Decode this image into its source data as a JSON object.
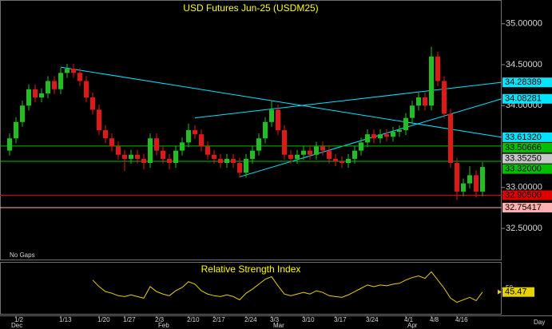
{
  "chart_data": {
    "type": "candlestick",
    "title": "USD  Futures  Jun-25  (USDM25)",
    "note": "No Gaps",
    "x_unit": "Day",
    "categories": [
      null,
      "1/2",
      null,
      null,
      null,
      null,
      null,
      null,
      "1/13",
      null,
      null,
      null,
      null,
      null,
      "1/20",
      null,
      null,
      null,
      "1/27",
      null,
      null,
      null,
      null,
      "2/3",
      null,
      null,
      null,
      null,
      "2/10",
      null,
      null,
      null,
      "2/17",
      null,
      null,
      null,
      null,
      "2/24",
      null,
      null,
      null,
      "3/3",
      null,
      null,
      null,
      null,
      "3/10",
      null,
      null,
      null,
      null,
      "3/17",
      null,
      null,
      null,
      null,
      "3/24",
      null,
      null,
      null,
      null,
      null,
      "4/1",
      null,
      null,
      null,
      "4/8",
      null,
      null,
      null,
      "4/16",
      null,
      null,
      null,
      null
    ],
    "month_labels": [
      {
        "index": 0,
        "label": "Dec"
      },
      {
        "index": 23,
        "label": "Feb"
      },
      {
        "index": 41,
        "label": "Mar"
      },
      {
        "index": 62,
        "label": "Apr"
      }
    ],
    "open": [
      33.45,
      33.6,
      33.8,
      34.0,
      34.2,
      34.1,
      34.15,
      34.3,
      34.2,
      34.4,
      34.45,
      34.4,
      34.3,
      34.1,
      33.95,
      33.7,
      33.6,
      33.5,
      33.4,
      33.35,
      33.4,
      33.35,
      33.3,
      33.6,
      33.45,
      33.35,
      33.3,
      33.45,
      33.55,
      33.7,
      33.65,
      33.5,
      33.4,
      33.35,
      33.3,
      33.35,
      33.3,
      33.18,
      33.35,
      33.45,
      33.6,
      33.8,
      33.95,
      33.7,
      33.4,
      33.35,
      33.4,
      33.45,
      33.4,
      33.5,
      33.45,
      33.35,
      33.32,
      33.3,
      33.35,
      33.45,
      33.55,
      33.65,
      33.6,
      33.65,
      33.62,
      33.68,
      33.7,
      33.85,
      34.0,
      34.1,
      34.0,
      34.6,
      34.3,
      33.9,
      33.3,
      32.95,
      33.05,
      33.15,
      32.95
    ],
    "high": [
      33.66,
      33.86,
      34.06,
      34.26,
      34.26,
      34.21,
      34.36,
      34.36,
      34.46,
      34.51,
      34.51,
      34.46,
      34.36,
      34.16,
      34.01,
      33.76,
      33.66,
      33.56,
      33.46,
      33.46,
      33.46,
      33.41,
      33.66,
      33.66,
      33.51,
      33.41,
      33.51,
      33.61,
      33.78,
      33.76,
      33.71,
      33.56,
      33.46,
      33.41,
      33.41,
      33.41,
      33.36,
      33.41,
      33.51,
      33.66,
      33.86,
      34.06,
      34.01,
      33.76,
      33.46,
      33.46,
      33.51,
      33.51,
      33.56,
      33.56,
      33.51,
      33.41,
      33.38,
      33.41,
      33.51,
      33.61,
      33.71,
      33.71,
      33.71,
      33.71,
      33.74,
      33.76,
      33.91,
      34.06,
      34.16,
      34.16,
      34.72,
      34.66,
      34.36,
      33.96,
      33.36,
      33.11,
      33.26,
      33.21,
      33.31
    ],
    "low": [
      33.39,
      33.54,
      33.74,
      33.94,
      34.04,
      34.04,
      34.09,
      34.14,
      34.14,
      34.34,
      34.34,
      34.24,
      34.04,
      33.89,
      33.64,
      33.54,
      33.44,
      33.34,
      33.2,
      33.29,
      33.29,
      33.22,
      33.24,
      33.39,
      33.29,
      33.22,
      33.24,
      33.39,
      33.49,
      33.59,
      33.44,
      33.34,
      33.29,
      33.24,
      33.24,
      33.24,
      33.12,
      33.12,
      33.29,
      33.39,
      33.54,
      33.74,
      33.64,
      33.34,
      33.29,
      33.29,
      33.34,
      33.34,
      33.34,
      33.39,
      33.29,
      33.26,
      33.24,
      33.24,
      33.29,
      33.39,
      33.49,
      33.54,
      33.54,
      33.56,
      33.56,
      33.62,
      33.64,
      33.79,
      33.94,
      33.94,
      33.94,
      34.24,
      33.84,
      33.24,
      32.85,
      32.89,
      32.99,
      32.88,
      32.89
    ],
    "close": [
      33.6,
      33.8,
      34.0,
      34.2,
      34.1,
      34.15,
      34.3,
      34.2,
      34.4,
      34.45,
      34.4,
      34.3,
      34.1,
      33.95,
      33.7,
      33.6,
      33.5,
      33.4,
      33.35,
      33.4,
      33.35,
      33.3,
      33.6,
      33.45,
      33.35,
      33.3,
      33.45,
      33.55,
      33.7,
      33.65,
      33.5,
      33.4,
      33.35,
      33.3,
      33.35,
      33.3,
      33.18,
      33.35,
      33.45,
      33.6,
      33.8,
      33.95,
      33.7,
      33.4,
      33.35,
      33.4,
      33.45,
      33.4,
      33.5,
      33.45,
      33.35,
      33.32,
      33.3,
      33.35,
      33.45,
      33.55,
      33.65,
      33.6,
      33.65,
      33.62,
      33.68,
      33.7,
      33.85,
      34.0,
      34.1,
      34.0,
      34.6,
      34.3,
      33.9,
      33.3,
      32.95,
      33.05,
      33.15,
      32.95,
      33.25
    ],
    "up_color": "#1fc01f",
    "down_color": "#e01818",
    "ylim": [
      32.12,
      35.29
    ],
    "yticks": [
      {
        "value": 35,
        "label": "35.00000"
      },
      {
        "value": 34.5,
        "label": "34.50000"
      },
      {
        "value": 34,
        "label": "34.00000"
      },
      {
        "value": 33,
        "label": "33.00000"
      },
      {
        "value": 32.5,
        "label": "32.50000"
      }
    ],
    "levels": [
      {
        "value": 34.28389,
        "label": "34.28389",
        "color": "#00e5ff",
        "from": [
          29,
          33.85
        ]
      },
      {
        "value": 34.08281,
        "label": "34.08281",
        "color": "#00e5ff",
        "from": [
          36,
          33.13
        ]
      },
      {
        "value": 33.6132,
        "label": "33.61320",
        "color": "#00e5ff",
        "from": [
          8,
          34.47
        ]
      },
      {
        "value": 33.50666,
        "label": "33.50666",
        "color": "#00c000",
        "line": true
      },
      {
        "value": 33.3525,
        "label": "33.35250",
        "color": "#c8c8c8"
      },
      {
        "value": 33.32,
        "label": "33.32000",
        "color": "#00c000",
        "line": true
      },
      {
        "value": 32.905,
        "label": "32.90500",
        "color": "#e00000",
        "line": true
      },
      {
        "value": 32.75417,
        "label": "32.75417",
        "color": "#ffb0b0",
        "line": true
      }
    ],
    "rsi": {
      "title": "Relative Strength Index",
      "color": "#e6d200",
      "ylim": [
        20,
        80
      ],
      "yticks": [
        50
      ],
      "values": [
        null,
        null,
        null,
        null,
        null,
        null,
        null,
        null,
        null,
        null,
        null,
        null,
        null,
        60,
        52,
        46,
        44,
        41,
        40,
        42,
        40,
        38,
        52,
        46,
        43,
        41,
        47,
        51,
        58,
        55,
        47,
        43,
        41,
        40,
        42,
        40,
        36,
        44,
        49,
        55,
        61,
        64,
        53,
        43,
        41,
        43,
        45,
        43,
        47,
        45,
        41,
        40,
        39,
        42,
        46,
        50,
        54,
        52,
        54,
        53,
        55,
        56,
        60,
        63,
        65,
        62,
        70,
        60,
        50,
        38,
        33,
        36,
        39,
        35,
        45.47
      ]
    }
  }
}
